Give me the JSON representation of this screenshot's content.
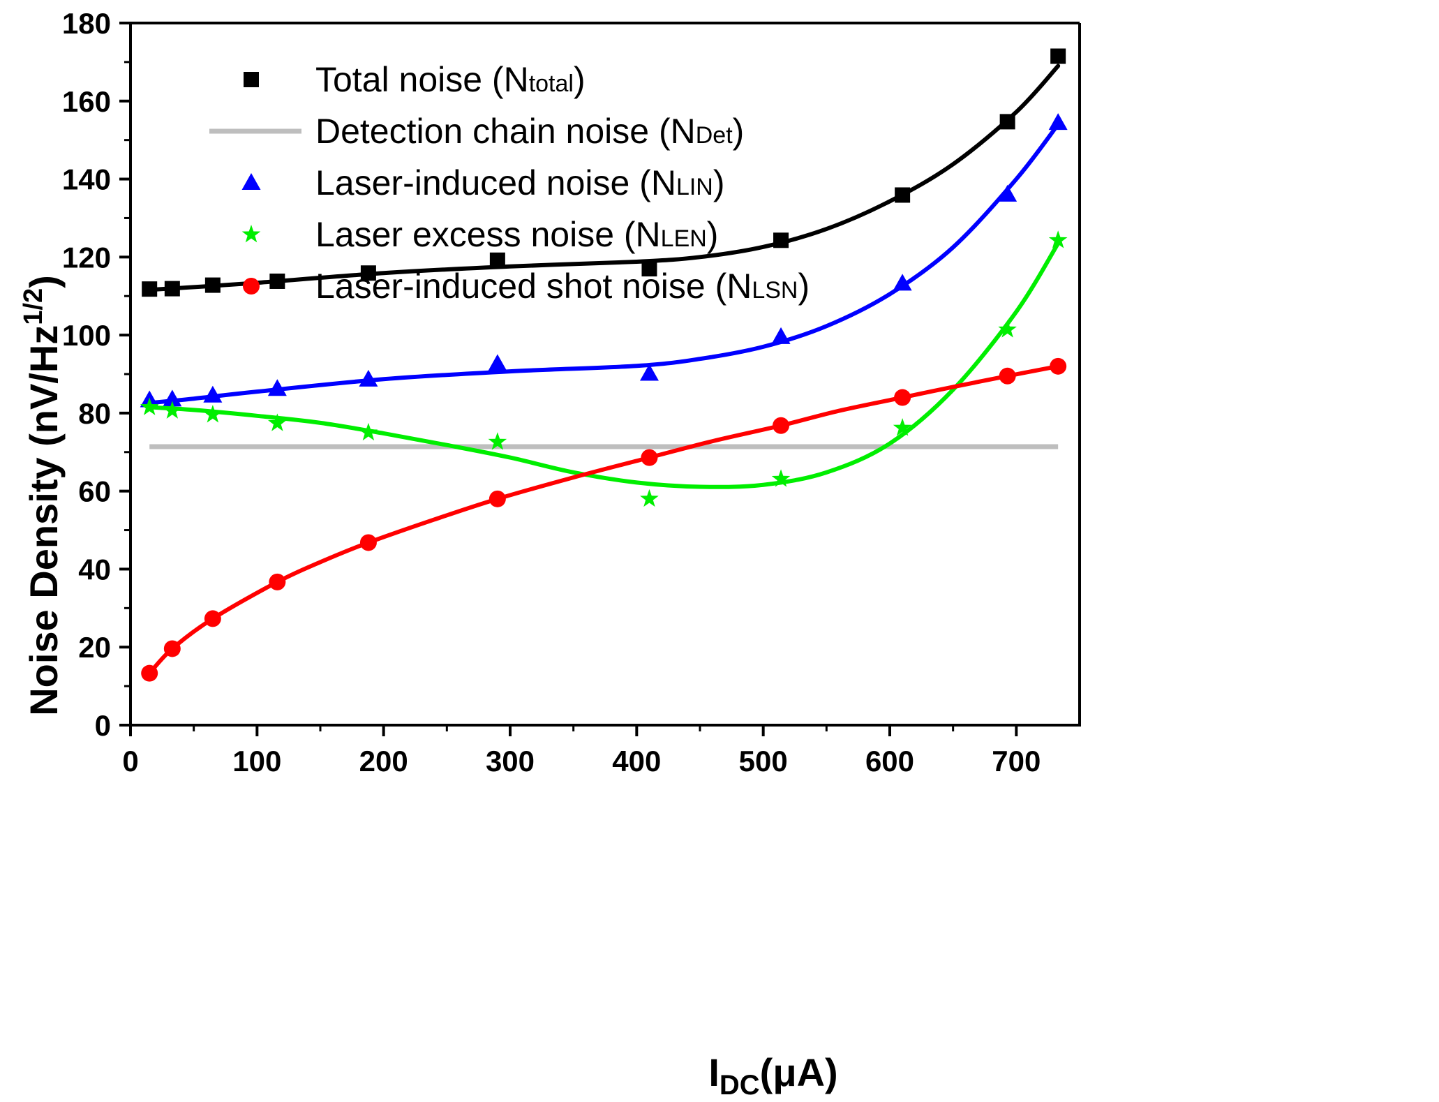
{
  "chart_data": {
    "type": "scatter",
    "title": "",
    "xlabel": {
      "main": "I",
      "sub": "DC",
      "rest": "(μA)"
    },
    "ylabel": {
      "main": "Noise Density (nV/Hz",
      "sup": "1/2",
      "end": ")"
    },
    "xlim": [
      0,
      750
    ],
    "ylim": [
      0,
      180
    ],
    "xticks": [
      "0",
      "100",
      "200",
      "300",
      "400",
      "500",
      "600",
      "700"
    ],
    "yticks": [
      "0",
      "20",
      "40",
      "60",
      "80",
      "100",
      "120",
      "140",
      "160",
      "180"
    ],
    "legend_position": "top-left",
    "series": [
      {
        "name": "Total noise",
        "legend_label": "Total noise (N",
        "legend_sub": "total",
        "legend_end": ")",
        "marker": "square",
        "color": "#000000",
        "x": [
          15,
          33,
          65,
          116,
          188,
          290,
          410,
          514,
          610,
          693,
          733
        ],
        "y": [
          111.8,
          111.9,
          112.8,
          113.8,
          115.9,
          119.2,
          117.0,
          124.3,
          135.9,
          154.7,
          171.5
        ],
        "fit_x": [
          15,
          50,
          100,
          200,
          300,
          400,
          450,
          500,
          550,
          600,
          650,
          700,
          733
        ],
        "fit_y": [
          111.6,
          112.3,
          113.4,
          115.9,
          117.6,
          118.8,
          120.0,
          122.6,
          127.2,
          134.3,
          143.8,
          157.2,
          169.0
        ]
      },
      {
        "name": "Detection chain noise",
        "legend_label": "Detection chain noise (N",
        "legend_sub": "Det",
        "legend_end": ")",
        "marker": "line",
        "color": "#bebebe",
        "x": [
          15,
          733
        ],
        "y": [
          71.4,
          71.4
        ]
      },
      {
        "name": "Laser-induced noise",
        "legend_label": "Laser-induced noise (N",
        "legend_sub": "LIN",
        "legend_end": ")",
        "marker": "triangle",
        "color": "#0000ff",
        "x": [
          15,
          33,
          65,
          116,
          188,
          290,
          410,
          514,
          610,
          693,
          733
        ],
        "y": [
          83.3,
          83.5,
          84.5,
          86.2,
          88.6,
          92.6,
          90.1,
          99.5,
          113.2,
          136.0,
          154.4
        ],
        "fit_x": [
          15,
          50,
          100,
          200,
          300,
          400,
          450,
          500,
          550,
          600,
          650,
          700,
          733
        ],
        "fit_y": [
          82.6,
          83.7,
          85.5,
          88.7,
          90.7,
          92.1,
          93.9,
          97.0,
          102.3,
          110.5,
          122.5,
          140.0,
          154.0
        ]
      },
      {
        "name": "Laser excess noise",
        "legend_label": "Laser excess noise (N",
        "legend_sub": "LEN",
        "legend_end": ")",
        "marker": "star",
        "color": "#00ee00",
        "x": [
          15,
          33,
          65,
          116,
          188,
          290,
          410,
          514,
          610,
          693,
          733
        ],
        "y": [
          81.5,
          80.6,
          79.6,
          77.4,
          75.0,
          72.6,
          58.0,
          63.1,
          76.2,
          101.4,
          124.3
        ],
        "fit_x": [
          15,
          50,
          100,
          150,
          200,
          250,
          300,
          350,
          400,
          450,
          500,
          550,
          600,
          650,
          700,
          733
        ],
        "fit_y": [
          81.5,
          80.8,
          79.3,
          77.5,
          74.8,
          71.8,
          68.6,
          64.8,
          62.2,
          61.1,
          61.6,
          64.8,
          72.2,
          86.0,
          106.0,
          123.5
        ]
      },
      {
        "name": "Laser-induced shot noise",
        "legend_label": "Laser-induced shot noise (N",
        "legend_sub": "LSN",
        "legend_end": ")",
        "marker": "circle",
        "color": "#ff0000",
        "x": [
          15,
          33,
          65,
          116,
          188,
          290,
          410,
          514,
          610,
          693,
          733
        ],
        "y": [
          13.3,
          19.6,
          27.3,
          36.7,
          46.8,
          58.0,
          68.6,
          76.8,
          84.0,
          89.5,
          92.0
        ],
        "fit_x": [
          15,
          33,
          65,
          116,
          150,
          188,
          240,
          290,
          350,
          410,
          460,
          514,
          560,
          610,
          650,
          693,
          733
        ],
        "fit_y": [
          13.3,
          19.6,
          27.3,
          36.7,
          41.8,
          46.8,
          52.7,
          58.0,
          63.5,
          68.6,
          72.8,
          76.8,
          80.6,
          84.0,
          86.7,
          89.5,
          92.0
        ]
      }
    ]
  }
}
